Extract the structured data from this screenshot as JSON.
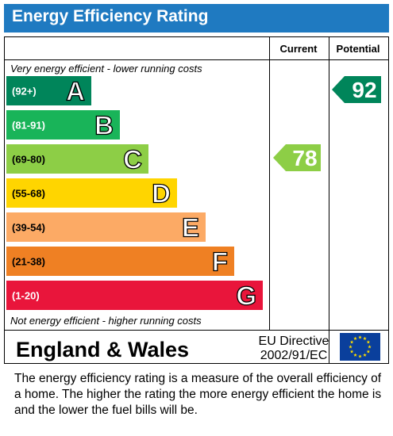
{
  "title": "Energy Efficiency Rating",
  "headers": {
    "current": "Current",
    "potential": "Potential"
  },
  "top_note": "Very energy efficient - lower running costs",
  "bottom_note": "Not energy efficient - higher running costs",
  "region": "England & Wales",
  "directive_line1": "EU Directive",
  "directive_line2": "2002/91/EC",
  "footer": "The energy efficiency rating is a measure of the overall efficiency of a home.  The higher the rating the more energy efficient the home is and the lower the fuel bills will be.",
  "colors": {
    "title_bar": "#1f7ac1",
    "eu_flag": "#0a3f9c",
    "eu_stars": "#ffde00"
  },
  "chart_data": {
    "type": "bar",
    "bands": [
      {
        "letter": "A",
        "range": "(92+)",
        "color": "#00855a"
      },
      {
        "letter": "B",
        "range": "(81-91)",
        "color": "#19b459"
      },
      {
        "letter": "C",
        "range": "(69-80)",
        "color": "#8dce46"
      },
      {
        "letter": "D",
        "range": "(55-68)",
        "color": "#ffd500"
      },
      {
        "letter": "E",
        "range": "(39-54)",
        "color": "#fcaa65"
      },
      {
        "letter": "F",
        "range": "(21-38)",
        "color": "#ef8023"
      },
      {
        "letter": "G",
        "range": "(1-20)",
        "color": "#e9153b"
      }
    ],
    "current": {
      "value": 78,
      "band": "C",
      "color": "#8dce46"
    },
    "potential": {
      "value": 92,
      "band": "A",
      "color": "#00855a"
    }
  }
}
